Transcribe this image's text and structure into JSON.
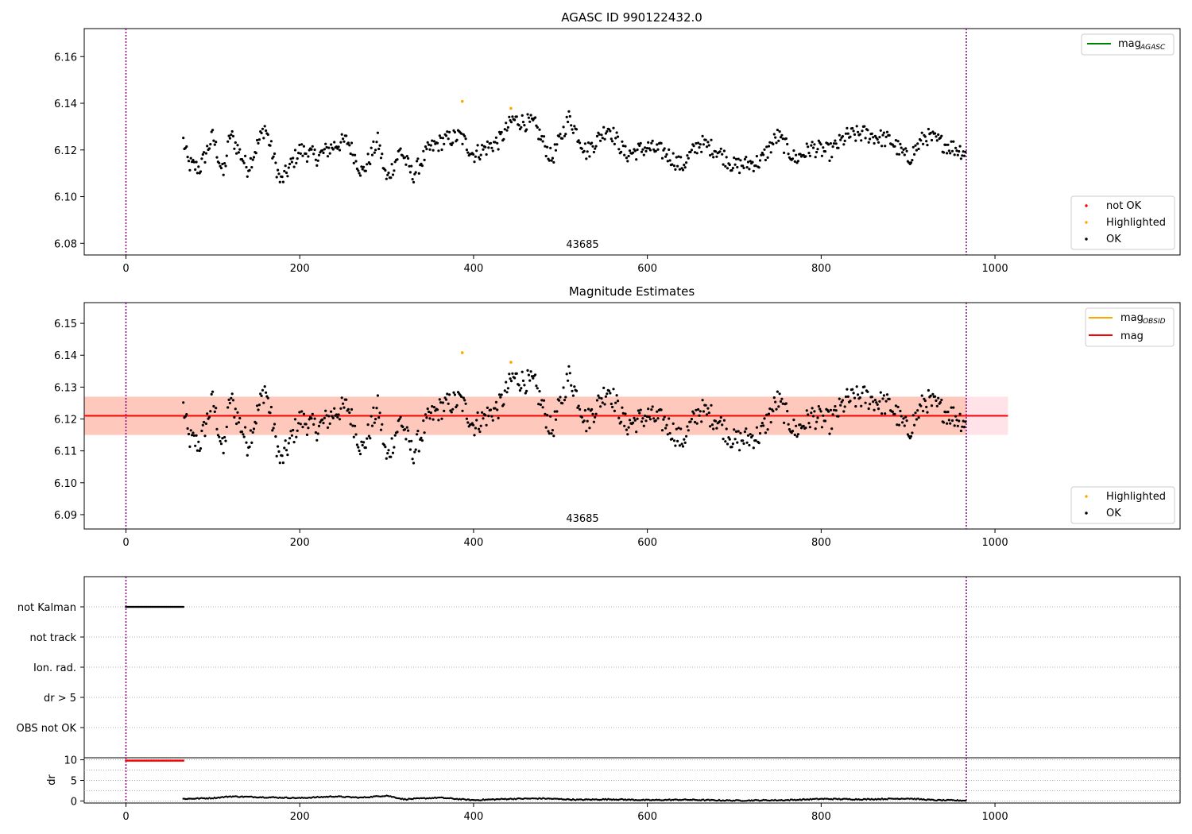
{
  "chart_data": [
    {
      "type": "scatter",
      "title": "AGASC ID 990122432.0",
      "annotation": "43685",
      "xlim": [
        -48,
        1213
      ],
      "ylim": [
        6.075,
        6.172
      ],
      "xticks": [
        0,
        200,
        400,
        600,
        800,
        1000
      ],
      "yticks": [
        6.08,
        6.1,
        6.12,
        6.14,
        6.16
      ],
      "vlines": [
        0,
        967
      ],
      "legend_lines": [
        {
          "label": "mag",
          "sub": "AGASC",
          "color": "#008000"
        }
      ],
      "legend_markers": [
        {
          "label": "not OK",
          "color": "#ff0000"
        },
        {
          "label": "Highlighted",
          "color": "#ffa500"
        },
        {
          "label": "OK",
          "color": "#000000"
        }
      ],
      "ok_range": [
        66,
        967
      ],
      "highlighted_points": [
        [
          387,
          6.1408
        ],
        [
          443,
          6.1378
        ]
      ],
      "series_trend": [
        [
          66,
          6.124
        ],
        [
          72,
          6.114
        ],
        [
          85,
          6.112
        ],
        [
          100,
          6.126
        ],
        [
          112,
          6.109
        ],
        [
          120,
          6.127
        ],
        [
          140,
          6.112
        ],
        [
          160,
          6.13
        ],
        [
          178,
          6.106
        ],
        [
          200,
          6.12
        ],
        [
          220,
          6.117
        ],
        [
          240,
          6.122
        ],
        [
          255,
          6.124
        ],
        [
          272,
          6.11
        ],
        [
          290,
          6.124
        ],
        [
          300,
          6.107
        ],
        [
          316,
          6.12
        ],
        [
          330,
          6.109
        ],
        [
          348,
          6.12
        ],
        [
          365,
          6.124
        ],
        [
          385,
          6.126
        ],
        [
          400,
          6.118
        ],
        [
          430,
          6.124
        ],
        [
          445,
          6.133
        ],
        [
          470,
          6.131
        ],
        [
          490,
          6.116
        ],
        [
          510,
          6.134
        ],
        [
          530,
          6.119
        ],
        [
          555,
          6.13
        ],
        [
          575,
          6.118
        ],
        [
          600,
          6.121
        ],
        [
          620,
          6.119
        ],
        [
          640,
          6.113
        ],
        [
          660,
          6.123
        ],
        [
          680,
          6.12
        ],
        [
          700,
          6.113
        ],
        [
          730,
          6.115
        ],
        [
          750,
          6.126
        ],
        [
          770,
          6.116
        ],
        [
          790,
          6.121
        ],
        [
          810,
          6.119
        ],
        [
          830,
          6.126
        ],
        [
          850,
          6.127
        ],
        [
          880,
          6.124
        ],
        [
          900,
          6.116
        ],
        [
          920,
          6.126
        ],
        [
          945,
          6.122
        ],
        [
          967,
          6.119
        ]
      ]
    },
    {
      "type": "scatter",
      "title": "Magnitude Estimates",
      "annotation": "43685",
      "xlim": [
        -48,
        1213
      ],
      "ylim": [
        6.0855,
        6.1565
      ],
      "xticks": [
        0,
        200,
        400,
        600,
        800,
        1000
      ],
      "yticks": [
        6.09,
        6.1,
        6.11,
        6.12,
        6.13,
        6.14,
        6.15
      ],
      "vlines": [
        0,
        967
      ],
      "mag": 6.121,
      "mag_obsid": 6.121,
      "band": [
        6.115,
        6.127
      ],
      "band_x": [
        -48,
        1015
      ],
      "band_colors": {
        "outer": "#ffc0cb",
        "inner": "#ffa07a"
      },
      "legend_lines": [
        {
          "label": "mag",
          "sub": "OBSID",
          "color": "#ffa500"
        },
        {
          "label": "mag",
          "sub": "",
          "color": "#ff0000"
        }
      ],
      "legend_markers": [
        {
          "label": "Highlighted",
          "color": "#ffa500"
        },
        {
          "label": "OK",
          "color": "#000000"
        }
      ],
      "highlighted_points": [
        [
          387,
          6.1408
        ],
        [
          443,
          6.1378
        ]
      ]
    },
    {
      "type": "scatter",
      "title": "",
      "xlim": [
        -48,
        1213
      ],
      "categories": [
        "not Kalman",
        "not track",
        "Ion. rad.",
        "dr > 5",
        "OBS not OK"
      ],
      "flags": [
        {
          "category": "not Kalman",
          "x_range": [
            0,
            66
          ],
          "color": "#000000"
        }
      ],
      "vlines": [
        0,
        967
      ]
    },
    {
      "type": "scatter",
      "title": "",
      "ylabel": "dr",
      "xlim": [
        -48,
        1213
      ],
      "ylim": [
        -0.5,
        10.5
      ],
      "yticks": [
        0,
        5,
        10
      ],
      "xticks": [
        0,
        200,
        400,
        600,
        800,
        1000
      ],
      "vlines": [
        0,
        967
      ],
      "saturated": {
        "x_range": [
          0,
          66
        ],
        "value": 9.8,
        "color": "#ff0000"
      },
      "dr_trend": [
        [
          66,
          0.5
        ],
        [
          100,
          0.7
        ],
        [
          120,
          1.1
        ],
        [
          160,
          0.9
        ],
        [
          200,
          0.7
        ],
        [
          240,
          1.1
        ],
        [
          270,
          0.8
        ],
        [
          300,
          1.3
        ],
        [
          320,
          0.4
        ],
        [
          360,
          0.8
        ],
        [
          400,
          0.2
        ],
        [
          440,
          0.5
        ],
        [
          480,
          0.6
        ],
        [
          520,
          0.3
        ],
        [
          560,
          0.4
        ],
        [
          600,
          0.2
        ],
        [
          640,
          0.3
        ],
        [
          700,
          0.1
        ],
        [
          760,
          0.2
        ],
        [
          800,
          0.5
        ],
        [
          850,
          0.4
        ],
        [
          900,
          0.6
        ],
        [
          930,
          0.2
        ],
        [
          967,
          0.1
        ]
      ]
    }
  ]
}
